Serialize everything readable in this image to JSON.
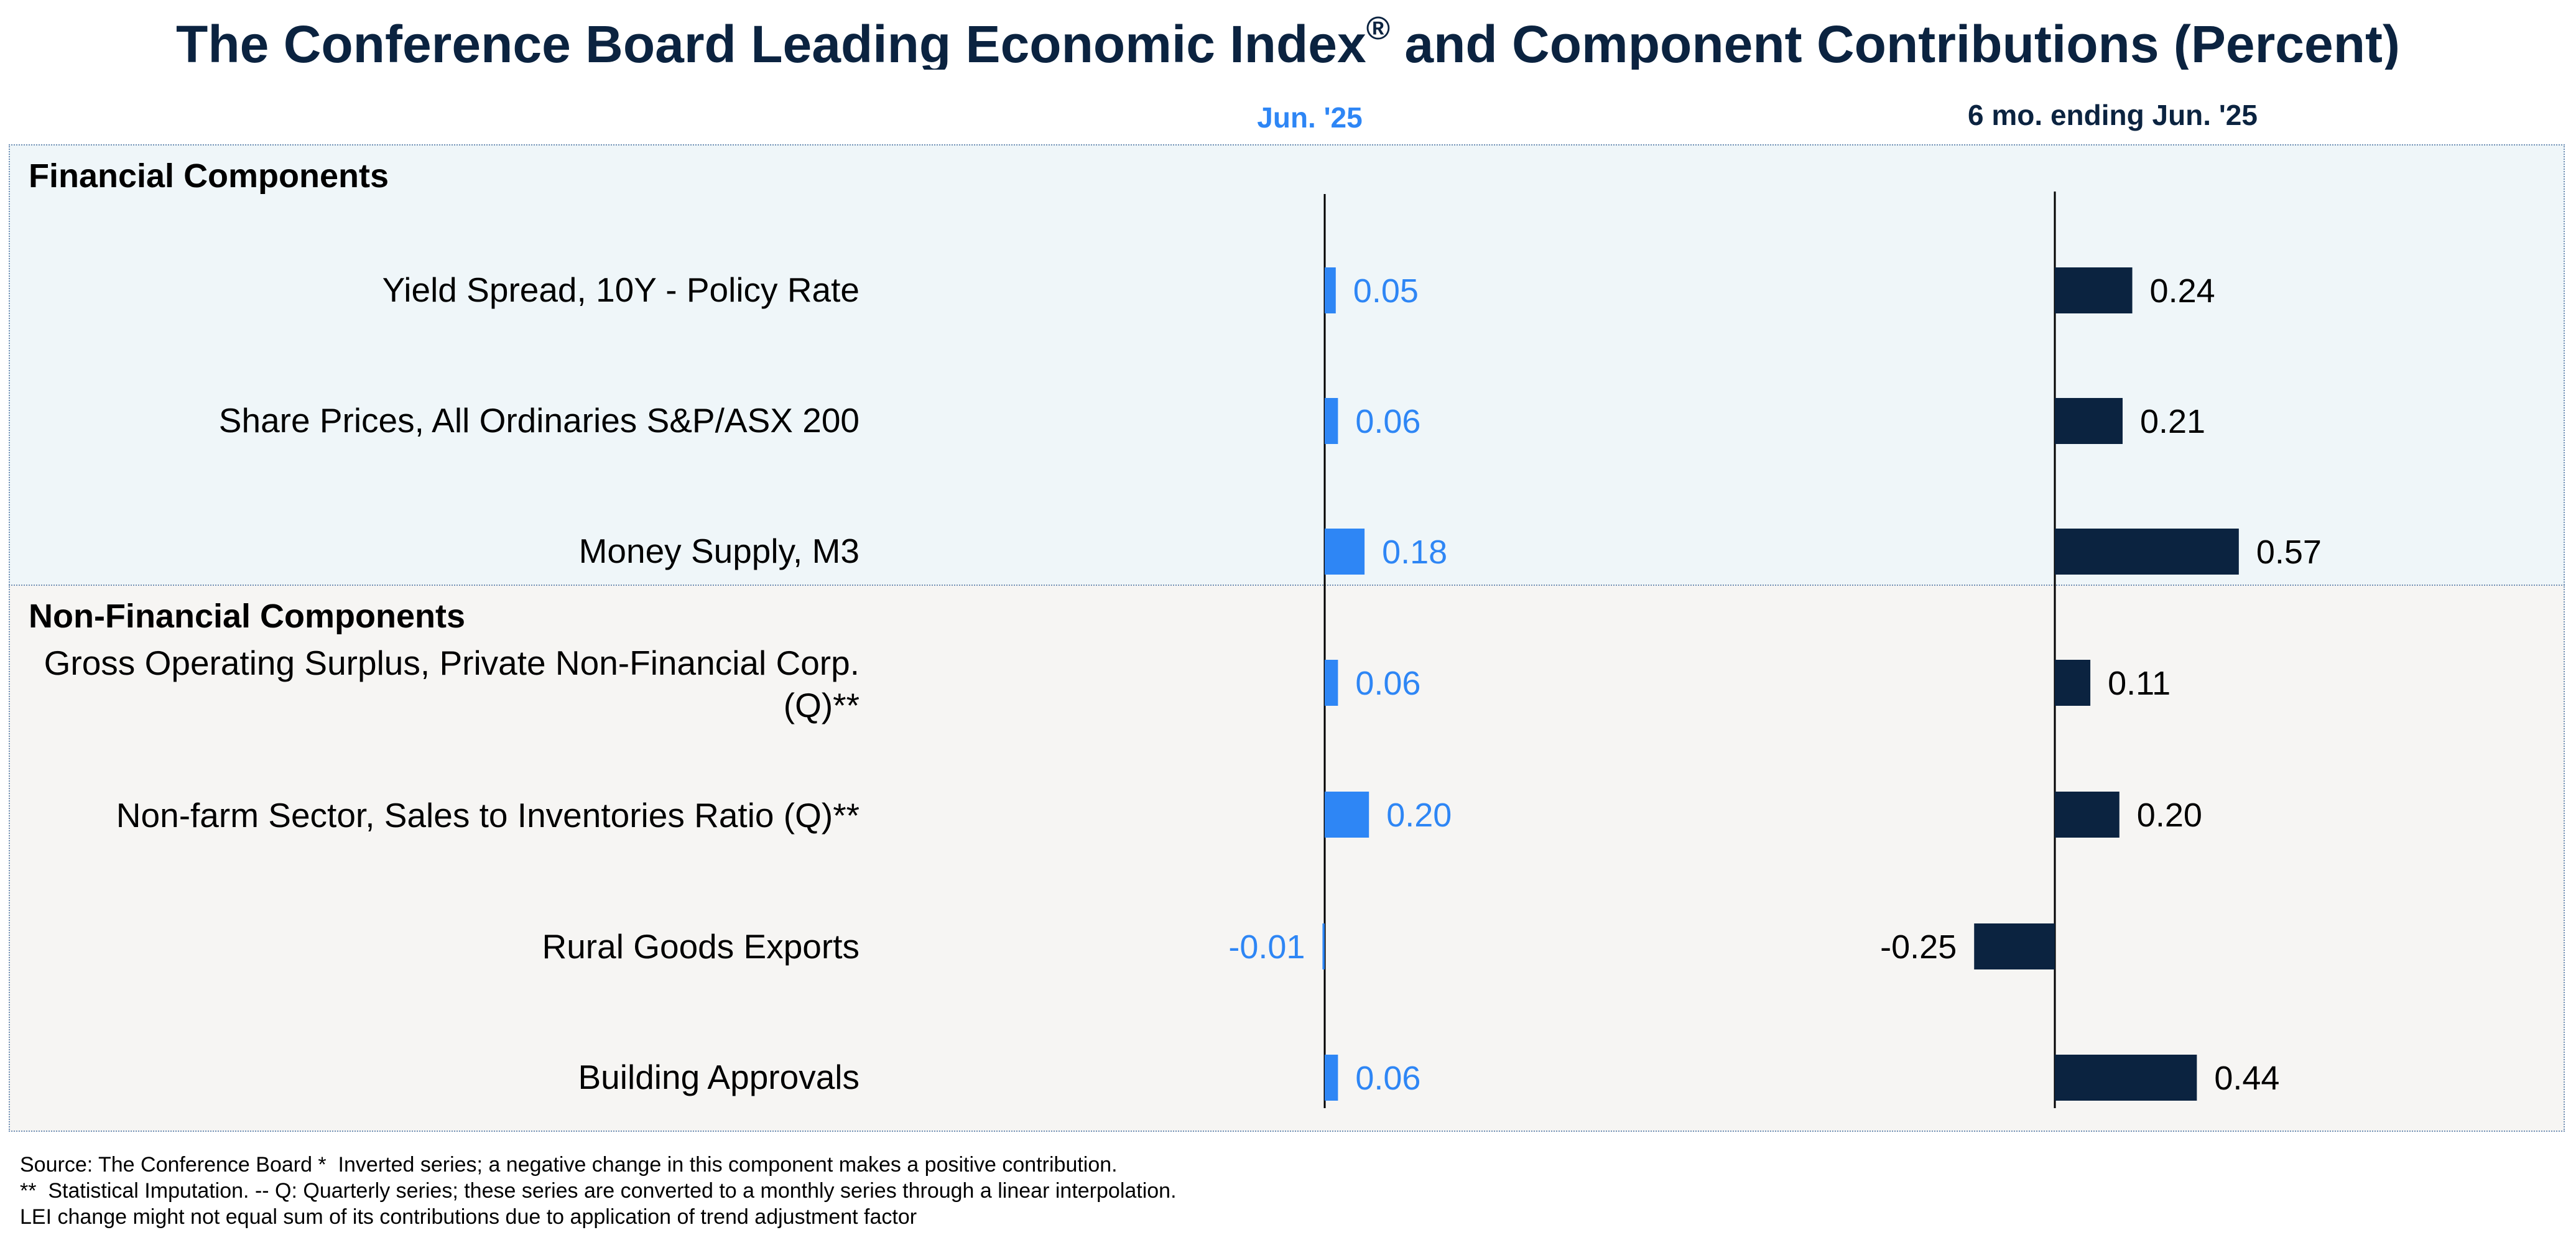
{
  "title": "The Conference Board Leading Economic Index",
  "title_mark": "®",
  "title_suffix": " and Component Contributions (Percent)",
  "colors": {
    "blue": "#2e86f5",
    "navy": "#0b2340",
    "panel_fin": "#eff6f9",
    "panel_nonfin": "#f6f5f3"
  },
  "chart_data": {
    "type": "bar",
    "orientation": "horizontal",
    "title": "The Conference Board Leading Economic Index® and Component Contributions (Percent)",
    "sections": [
      {
        "name": "Financial Components",
        "rows": [
          0,
          1,
          2
        ]
      },
      {
        "name": "Non-Financial Components",
        "rows": [
          3,
          4,
          5,
          6
        ]
      }
    ],
    "categories": [
      "Yield Spread, 10Y - Policy Rate",
      "Share Prices, All Ordinaries S&P/ASX 200",
      "Money Supply, M3",
      "Gross Operating Surplus, Private Non-Financial Corp. (Q)**",
      "Non-farm Sector, Sales to Inventories Ratio (Q)**",
      "Rural Goods Exports",
      "Building Approvals"
    ],
    "series": [
      {
        "name": "Jun. '25",
        "values": [
          0.05,
          0.06,
          0.18,
          0.06,
          0.2,
          -0.01,
          0.06
        ],
        "labels": [
          "0.05",
          "0.06",
          "0.18",
          "0.06",
          "0.20",
          "-0.01",
          "0.06"
        ]
      },
      {
        "name": "6 mo. ending Jun. '25",
        "values": [
          0.24,
          0.21,
          0.57,
          0.11,
          0.2,
          -0.25,
          0.44
        ],
        "labels": [
          "0.24",
          "0.21",
          "0.57",
          "0.11",
          "0.20",
          "-0.25",
          "0.44"
        ]
      }
    ]
  },
  "source_lines": [
    "Source: The Conference Board *  Inverted series; a negative change in this component makes a positive contribution.",
    "**  Statistical Imputation. -- Q: Quarterly series; these series are converted to a monthly series through a linear interpolation.",
    "LEI change might not equal sum of its contributions due to application of trend adjustment factor"
  ]
}
